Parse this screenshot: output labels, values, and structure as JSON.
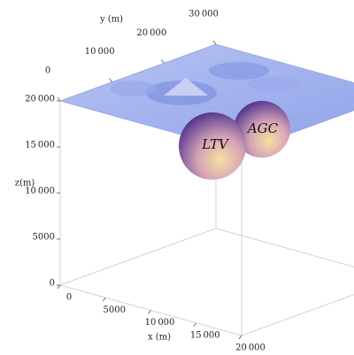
{
  "chart_data": {
    "type": "surface3d",
    "x_label": "x (m)",
    "y_label": "y (m)",
    "z_label": "z(m)",
    "xlim": [
      0,
      20000
    ],
    "ylim": [
      0,
      30000
    ],
    "zlim": [
      0,
      20000
    ],
    "xticks": [
      0,
      5000,
      {
        "value": 10000,
        "label": "10 000"
      },
      {
        "value": 15000,
        "label": "15 000"
      },
      {
        "value": 20000,
        "label": "20 000"
      }
    ],
    "yticks": [
      0,
      {
        "value": 10000,
        "label": "10 000"
      },
      {
        "value": 20000,
        "label": "20 000"
      },
      {
        "value": 30000,
        "label": "30 000"
      }
    ],
    "zticks": [
      0,
      5000,
      {
        "value": 10000,
        "label": "10 000"
      },
      {
        "value": 15000,
        "label": "15 000"
      },
      {
        "value": 20000,
        "label": "20 000"
      }
    ],
    "annotations": [
      "LTV",
      "AGC"
    ]
  }
}
